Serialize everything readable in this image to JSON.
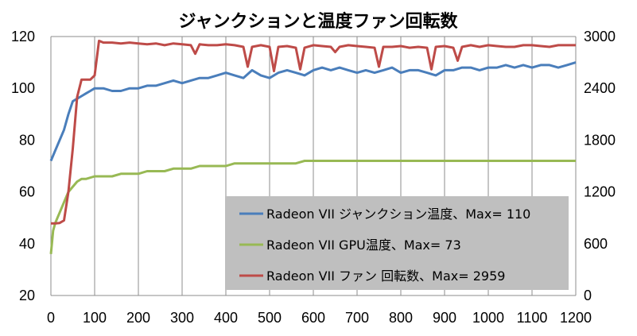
{
  "chart_data": {
    "type": "line",
    "title": "ジャンクションと温度ファン回転数",
    "x_range": [
      0,
      1200
    ],
    "x_ticks": [
      0,
      100,
      200,
      300,
      400,
      500,
      600,
      700,
      800,
      900,
      1000,
      1100,
      1200
    ],
    "y_left_range": [
      20,
      120
    ],
    "y_left_ticks": [
      20,
      40,
      60,
      80,
      100,
      120
    ],
    "y_right_range": [
      0,
      3000
    ],
    "y_right_ticks": [
      0,
      600,
      1200,
      1800,
      2400,
      3000
    ],
    "grid": "vertical",
    "legend_position": "bottom-right",
    "series": [
      {
        "name": "Radeon VII ジャンクション温度、Max= 110",
        "axis": "left",
        "color": "#4a7ebb",
        "points": [
          [
            0,
            72
          ],
          [
            10,
            76
          ],
          [
            20,
            80
          ],
          [
            30,
            84
          ],
          [
            40,
            90
          ],
          [
            50,
            95
          ],
          [
            60,
            96
          ],
          [
            70,
            97
          ],
          [
            80,
            98
          ],
          [
            90,
            99
          ],
          [
            100,
            100
          ],
          [
            120,
            100
          ],
          [
            140,
            99
          ],
          [
            160,
            99
          ],
          [
            180,
            100
          ],
          [
            200,
            100
          ],
          [
            220,
            101
          ],
          [
            240,
            101
          ],
          [
            260,
            102
          ],
          [
            280,
            103
          ],
          [
            300,
            102
          ],
          [
            320,
            103
          ],
          [
            340,
            104
          ],
          [
            360,
            104
          ],
          [
            380,
            105
          ],
          [
            400,
            106
          ],
          [
            420,
            105
          ],
          [
            440,
            104
          ],
          [
            460,
            107
          ],
          [
            480,
            105
          ],
          [
            500,
            104
          ],
          [
            520,
            106
          ],
          [
            540,
            107
          ],
          [
            560,
            106
          ],
          [
            580,
            105
          ],
          [
            600,
            107
          ],
          [
            620,
            108
          ],
          [
            640,
            107
          ],
          [
            660,
            108
          ],
          [
            680,
            107
          ],
          [
            700,
            106
          ],
          [
            720,
            107
          ],
          [
            740,
            106
          ],
          [
            760,
            107
          ],
          [
            780,
            108
          ],
          [
            800,
            106
          ],
          [
            820,
            107
          ],
          [
            840,
            107
          ],
          [
            860,
            106
          ],
          [
            880,
            105
          ],
          [
            900,
            107
          ],
          [
            920,
            107
          ],
          [
            940,
            108
          ],
          [
            960,
            108
          ],
          [
            980,
            107
          ],
          [
            1000,
            108
          ],
          [
            1020,
            108
          ],
          [
            1040,
            109
          ],
          [
            1060,
            108
          ],
          [
            1080,
            109
          ],
          [
            1100,
            108
          ],
          [
            1120,
            109
          ],
          [
            1140,
            109
          ],
          [
            1160,
            108
          ],
          [
            1180,
            109
          ],
          [
            1200,
            110
          ]
        ]
      },
      {
        "name": "Radeon VII GPU温度、Max= 73",
        "axis": "left",
        "color": "#98b954",
        "points": [
          [
            0,
            36
          ],
          [
            5,
            45
          ],
          [
            10,
            48
          ],
          [
            20,
            52
          ],
          [
            30,
            56
          ],
          [
            40,
            60
          ],
          [
            50,
            62
          ],
          [
            60,
            64
          ],
          [
            70,
            65
          ],
          [
            80,
            65
          ],
          [
            100,
            66
          ],
          [
            120,
            66
          ],
          [
            140,
            66
          ],
          [
            160,
            67
          ],
          [
            180,
            67
          ],
          [
            200,
            67
          ],
          [
            220,
            68
          ],
          [
            240,
            68
          ],
          [
            260,
            68
          ],
          [
            280,
            69
          ],
          [
            300,
            69
          ],
          [
            320,
            69
          ],
          [
            340,
            70
          ],
          [
            360,
            70
          ],
          [
            380,
            70
          ],
          [
            400,
            70
          ],
          [
            420,
            71
          ],
          [
            440,
            71
          ],
          [
            460,
            71
          ],
          [
            480,
            71
          ],
          [
            500,
            71
          ],
          [
            520,
            71
          ],
          [
            540,
            71
          ],
          [
            560,
            71
          ],
          [
            580,
            72
          ],
          [
            600,
            72
          ],
          [
            640,
            72
          ],
          [
            680,
            72
          ],
          [
            720,
            72
          ],
          [
            760,
            72
          ],
          [
            800,
            72
          ],
          [
            840,
            72
          ],
          [
            880,
            72
          ],
          [
            920,
            72
          ],
          [
            960,
            72
          ],
          [
            1000,
            72
          ],
          [
            1040,
            72
          ],
          [
            1080,
            72
          ],
          [
            1120,
            72
          ],
          [
            1160,
            72
          ],
          [
            1200,
            72
          ]
        ]
      },
      {
        "name": "Radeon VII ファン 回転数、Max= 2959",
        "axis": "right",
        "color": "#be4b48",
        "points": [
          [
            0,
            835
          ],
          [
            10,
            835
          ],
          [
            20,
            840
          ],
          [
            30,
            870
          ],
          [
            40,
            1200
          ],
          [
            50,
            1700
          ],
          [
            60,
            2300
          ],
          [
            70,
            2500
          ],
          [
            80,
            2500
          ],
          [
            90,
            2500
          ],
          [
            100,
            2550
          ],
          [
            110,
            2950
          ],
          [
            120,
            2930
          ],
          [
            140,
            2930
          ],
          [
            160,
            2920
          ],
          [
            180,
            2930
          ],
          [
            200,
            2920
          ],
          [
            220,
            2910
          ],
          [
            240,
            2920
          ],
          [
            260,
            2900
          ],
          [
            280,
            2920
          ],
          [
            300,
            2910
          ],
          [
            320,
            2900
          ],
          [
            330,
            2800
          ],
          [
            340,
            2910
          ],
          [
            360,
            2900
          ],
          [
            380,
            2900
          ],
          [
            400,
            2910
          ],
          [
            420,
            2900
          ],
          [
            440,
            2880
          ],
          [
            450,
            2650
          ],
          [
            460,
            2880
          ],
          [
            480,
            2900
          ],
          [
            500,
            2880
          ],
          [
            510,
            2600
          ],
          [
            520,
            2880
          ],
          [
            540,
            2890
          ],
          [
            560,
            2870
          ],
          [
            570,
            2620
          ],
          [
            580,
            2870
          ],
          [
            600,
            2900
          ],
          [
            620,
            2890
          ],
          [
            640,
            2880
          ],
          [
            650,
            2820
          ],
          [
            660,
            2880
          ],
          [
            680,
            2900
          ],
          [
            700,
            2890
          ],
          [
            720,
            2880
          ],
          [
            740,
            2870
          ],
          [
            750,
            2650
          ],
          [
            760,
            2880
          ],
          [
            780,
            2880
          ],
          [
            800,
            2890
          ],
          [
            820,
            2870
          ],
          [
            840,
            2880
          ],
          [
            860,
            2870
          ],
          [
            870,
            2620
          ],
          [
            880,
            2880
          ],
          [
            900,
            2890
          ],
          [
            920,
            2870
          ],
          [
            930,
            2720
          ],
          [
            940,
            2880
          ],
          [
            960,
            2900
          ],
          [
            980,
            2880
          ],
          [
            1000,
            2900
          ],
          [
            1020,
            2890
          ],
          [
            1040,
            2880
          ],
          [
            1060,
            2880
          ],
          [
            1080,
            2900
          ],
          [
            1100,
            2900
          ],
          [
            1120,
            2890
          ],
          [
            1140,
            2880
          ],
          [
            1160,
            2900
          ],
          [
            1180,
            2900
          ],
          [
            1200,
            2900
          ]
        ]
      }
    ]
  }
}
